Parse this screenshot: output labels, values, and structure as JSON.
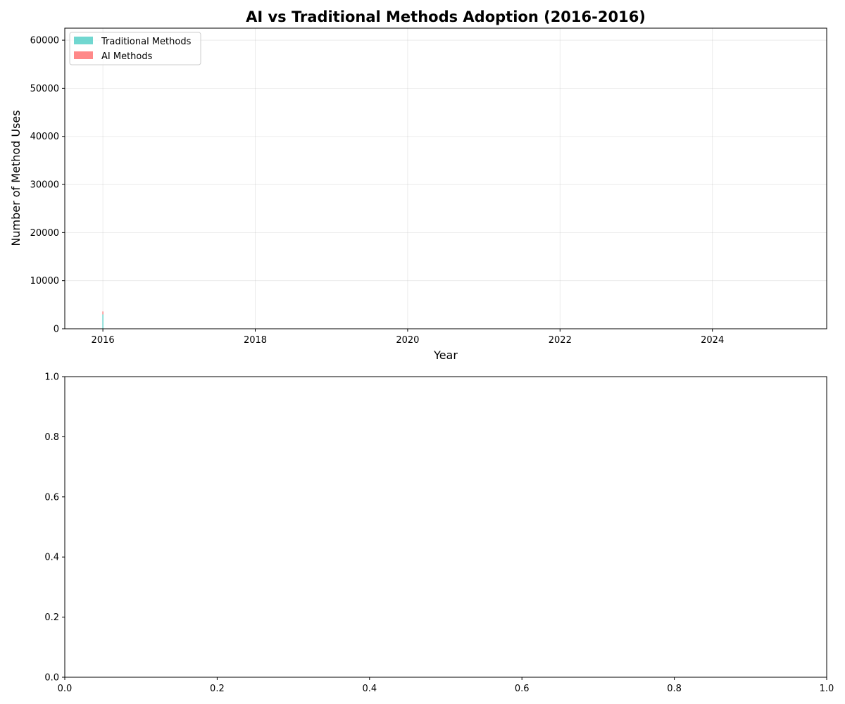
{
  "chart_data": [
    {
      "type": "area",
      "title": "AI vs Traditional Methods Adoption (2016-2016)",
      "xlabel": "Year",
      "ylabel": "Number of Method Uses",
      "xlim": [
        2015.5,
        2025.5
      ],
      "ylim": [
        0,
        62500
      ],
      "x_ticks": [
        2016,
        2018,
        2020,
        2022,
        2024
      ],
      "y_ticks": [
        0,
        10000,
        20000,
        30000,
        40000,
        50000,
        60000
      ],
      "grid": true,
      "stacked": true,
      "legend_position": "top-left",
      "x": [
        2016
      ],
      "series": [
        {
          "name": "Traditional Methods",
          "values": [
            3000
          ],
          "color": "#4ecdc4"
        },
        {
          "name": "AI Methods",
          "values": [
            600
          ],
          "color": "#ff6b6b"
        }
      ]
    },
    {
      "type": "empty",
      "title": "",
      "xlabel": "",
      "ylabel": "",
      "xlim": [
        0,
        1
      ],
      "ylim": [
        0,
        1
      ],
      "x_ticks": [
        "0.0",
        "0.2",
        "0.4",
        "0.6",
        "0.8",
        "1.0"
      ],
      "y_ticks": [
        "0.0",
        "0.2",
        "0.4",
        "0.6",
        "0.8",
        "1.0"
      ],
      "grid": false
    }
  ]
}
